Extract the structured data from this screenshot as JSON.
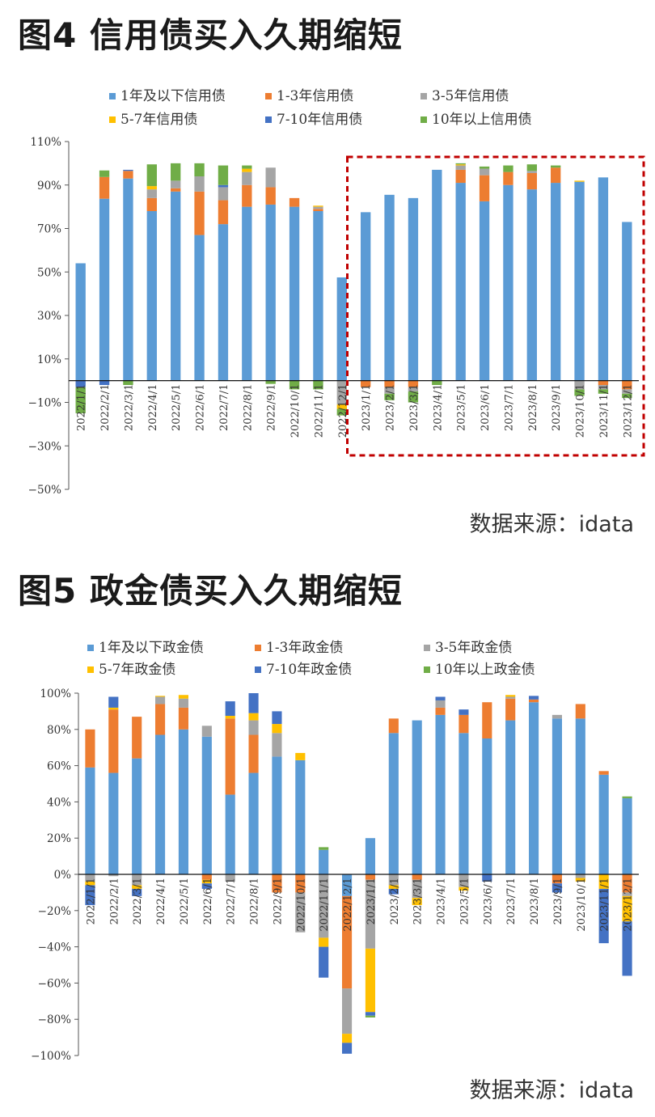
{
  "source_label": "数据来源：idata",
  "chart_data": [
    {
      "type": "bar",
      "stacked": true,
      "title": "图4  信用债买入久期缩短",
      "categories": [
        "2022/1/1",
        "2022/2/1",
        "2022/3/1",
        "2022/4/1",
        "2022/5/1",
        "2022/6/1",
        "2022/7/1",
        "2022/8/1",
        "2022/9/1",
        "2022/10/1",
        "2022/11/1",
        "2022/12/1",
        "2023/1/1",
        "2023/2/1",
        "2023/3/1",
        "2023/4/1",
        "2023/5/1",
        "2023/6/1",
        "2023/7/1",
        "2023/8/1",
        "2023/9/1",
        "2023/10/1",
        "2023/11/1",
        "2023/12/1"
      ],
      "ylim": [
        -50,
        110
      ],
      "yticks": [
        -50,
        -30,
        -10,
        10,
        30,
        50,
        70,
        90,
        110
      ],
      "ytick_labels": [
        "−50%",
        "−30%",
        "−10%",
        "10%",
        "30%",
        "50%",
        "70%",
        "90%",
        "110%"
      ],
      "highlight_range": [
        "2023/1/1",
        "2023/12/1"
      ],
      "series": [
        {
          "name": "1年及以下信用债",
          "color": "#5b9bd5",
          "values": [
            54,
            83.7,
            93,
            78,
            87,
            67,
            72,
            80,
            81,
            80,
            78,
            47.5,
            77.5,
            85.5,
            84,
            97,
            91,
            82.5,
            90,
            88,
            91,
            91.5,
            93.5,
            73
          ]
        },
        {
          "name": "1-3年信用债",
          "color": "#ed7d31",
          "values": [
            0,
            10,
            3.5,
            6,
            1.5,
            20,
            11,
            10,
            8,
            4,
            1,
            0,
            -3,
            -3,
            -3,
            0,
            6,
            12,
            6,
            7.5,
            7,
            0,
            -2,
            -4
          ]
        },
        {
          "name": "3-5年信用债",
          "color": "#a5a5a5",
          "values": [
            0,
            0,
            0,
            4,
            3.5,
            7,
            6,
            6,
            9,
            0,
            1,
            -11,
            0,
            -3,
            -2,
            0,
            2,
            3,
            0,
            1,
            0,
            -4,
            -2,
            -2
          ]
        },
        {
          "name": "5-7年信用债",
          "color": "#ffc000",
          "values": [
            0,
            0,
            0,
            1.5,
            0,
            0,
            0,
            1.5,
            0,
            0,
            0.5,
            -2,
            0,
            0,
            0,
            0,
            0.5,
            0,
            0,
            0,
            0,
            0.5,
            0,
            0
          ]
        },
        {
          "name": "7-10年信用债",
          "color": "#4472c4",
          "values": [
            -3,
            -2,
            0.5,
            0,
            0,
            0,
            1,
            0,
            0,
            0,
            0,
            0,
            0,
            0,
            0,
            0,
            0,
            0,
            0,
            0,
            0,
            0,
            0,
            0
          ]
        },
        {
          "name": "10年以上信用债",
          "color": "#70ad47",
          "values": [
            -12,
            3,
            -2,
            10,
            8,
            6,
            9,
            1.5,
            -1.5,
            -4,
            -4,
            -3,
            0,
            -3,
            -5,
            -2,
            0.5,
            1,
            3,
            3,
            1,
            -3,
            -2,
            -2
          ]
        }
      ]
    },
    {
      "type": "bar",
      "stacked": true,
      "title": "图5  政金债买入久期缩短",
      "categories": [
        "2022/1/1",
        "2022/2/1",
        "2022/3/1",
        "2022/4/1",
        "2022/5/1",
        "2022/6/1",
        "2022/7/1",
        "2022/8/1",
        "2022/9/1",
        "2022/10/1",
        "2022/11/1",
        "2022/12/1",
        "2023/1/1",
        "2023/2/1",
        "2023/3/1",
        "2023/4/1",
        "2023/5/1",
        "2023/6/1",
        "2023/7/1",
        "2023/8/1",
        "2023/9/1",
        "2023/10/1",
        "2023/11/1",
        "2023/12/1"
      ],
      "ylim": [
        -100,
        100
      ],
      "yticks": [
        -100,
        -80,
        -60,
        -40,
        -20,
        0,
        20,
        40,
        60,
        80,
        100
      ],
      "ytick_labels": [
        "−100%",
        "−80%",
        "−60%",
        "−40%",
        "−20%",
        "0%",
        "20%",
        "40%",
        "60%",
        "80%",
        "100%"
      ],
      "series": [
        {
          "name": "1年及以下政金债",
          "color": "#5b9bd5",
          "values": [
            59,
            56,
            64,
            77,
            80,
            76,
            44,
            56,
            65,
            63,
            13.5,
            -12,
            20,
            78,
            85,
            88,
            78,
            75,
            85,
            95,
            86,
            86,
            55,
            42
          ]
        },
        {
          "name": "1-3年政金债",
          "color": "#ed7d31",
          "values": [
            21,
            35,
            23,
            17,
            12,
            -3,
            42,
            21,
            -10,
            -10,
            0,
            -51,
            -3,
            8,
            -3,
            4,
            10,
            20,
            12,
            1.5,
            -5,
            8,
            2,
            -10
          ]
        },
        {
          "name": "3-5年政金债",
          "color": "#a5a5a5",
          "values": [
            -4,
            -1,
            -6,
            4,
            5,
            6,
            -4,
            8,
            13,
            -22,
            -35,
            -25,
            -38,
            -6,
            -10,
            4,
            -7,
            0,
            1,
            0,
            2,
            -2,
            0,
            -2
          ]
        },
        {
          "name": "5-7年政金债",
          "color": "#ffc000",
          "values": [
            -2,
            1,
            -2,
            0.5,
            2,
            -2,
            1.5,
            4,
            5,
            4,
            -5,
            -5,
            -35,
            -2,
            -4,
            0,
            -2,
            0,
            1,
            0,
            0,
            -2,
            -8,
            -14
          ]
        },
        {
          "name": "7-10年政金债",
          "color": "#4472c4",
          "values": [
            -11,
            6,
            -4,
            0,
            0,
            -3,
            8,
            11,
            7,
            0,
            -17,
            -6,
            -2,
            -3,
            0,
            2,
            3,
            -4,
            0,
            2,
            -5,
            0,
            -30,
            -30
          ]
        },
        {
          "name": "10年以上政金债",
          "color": "#70ad47",
          "values": [
            0,
            0,
            0,
            0,
            0,
            0,
            0,
            0,
            0,
            0,
            1.5,
            0,
            -1,
            0,
            0,
            0,
            0,
            0,
            0,
            0,
            0,
            0,
            0,
            1
          ]
        }
      ]
    }
  ]
}
